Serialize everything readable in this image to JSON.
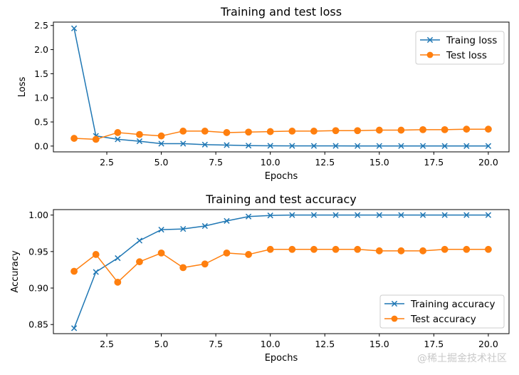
{
  "watermark": "@稀土掘金技术社区",
  "chart_data": [
    {
      "type": "line",
      "title": "Training and test loss",
      "xlabel": "Epochs",
      "ylabel": "Loss",
      "xlim": [
        0.05,
        20.95
      ],
      "ylim": [
        -0.12,
        2.57
      ],
      "xticks": [
        2.5,
        5.0,
        7.5,
        10.0,
        12.5,
        15.0,
        17.5,
        20.0
      ],
      "xtick_labels": [
        "2.5",
        "5.0",
        "7.5",
        "10.0",
        "12.5",
        "15.0",
        "17.5",
        "20.0"
      ],
      "yticks": [
        0.0,
        0.5,
        1.0,
        1.5,
        2.0,
        2.5
      ],
      "ytick_labels": [
        "0.0",
        "0.5",
        "1.0",
        "1.5",
        "2.0",
        "2.5"
      ],
      "legend_position": "upper right",
      "x": [
        1,
        2,
        3,
        4,
        5,
        6,
        7,
        8,
        9,
        10,
        11,
        12,
        13,
        14,
        15,
        16,
        17,
        18,
        19,
        20
      ],
      "series": [
        {
          "name": "Traing loss",
          "color": "#1f77b4",
          "marker": "x",
          "values": [
            2.44,
            0.21,
            0.14,
            0.1,
            0.05,
            0.05,
            0.03,
            0.02,
            0.01,
            0.005,
            0.004,
            0.003,
            0.003,
            0.002,
            0.002,
            0.002,
            0.002,
            0.001,
            0.001,
            0.001
          ]
        },
        {
          "name": "Test loss",
          "color": "#ff7f0e",
          "marker": "o",
          "values": [
            0.16,
            0.14,
            0.28,
            0.24,
            0.21,
            0.31,
            0.31,
            0.28,
            0.29,
            0.3,
            0.31,
            0.31,
            0.32,
            0.32,
            0.33,
            0.33,
            0.34,
            0.34,
            0.35,
            0.35
          ]
        }
      ]
    },
    {
      "type": "line",
      "title": "Training and test accuracy",
      "xlabel": "Epochs",
      "ylabel": "Accuracy",
      "xlim": [
        0.05,
        20.95
      ],
      "ylim": [
        0.8375,
        1.0075
      ],
      "xticks": [
        2.5,
        5.0,
        7.5,
        10.0,
        12.5,
        15.0,
        17.5,
        20.0
      ],
      "xtick_labels": [
        "2.5",
        "5.0",
        "7.5",
        "10.0",
        "12.5",
        "15.0",
        "17.5",
        "20.0"
      ],
      "yticks": [
        0.85,
        0.9,
        0.95,
        1.0
      ],
      "ytick_labels": [
        "0.85",
        "0.90",
        "0.95",
        "1.00"
      ],
      "legend_position": "lower right",
      "x": [
        1,
        2,
        3,
        4,
        5,
        6,
        7,
        8,
        9,
        10,
        11,
        12,
        13,
        14,
        15,
        16,
        17,
        18,
        19,
        20
      ],
      "series": [
        {
          "name": "Training accuracy",
          "color": "#1f77b4",
          "marker": "x",
          "values": [
            0.845,
            0.922,
            0.941,
            0.965,
            0.98,
            0.981,
            0.985,
            0.992,
            0.998,
            0.9995,
            1.0,
            1.0,
            1.0,
            1.0,
            1.0,
            1.0,
            1.0,
            1.0,
            1.0,
            1.0
          ]
        },
        {
          "name": "Test accuracy",
          "color": "#ff7f0e",
          "marker": "o",
          "values": [
            0.923,
            0.946,
            0.908,
            0.936,
            0.948,
            0.928,
            0.933,
            0.948,
            0.946,
            0.953,
            0.953,
            0.953,
            0.953,
            0.953,
            0.951,
            0.951,
            0.951,
            0.953,
            0.953,
            0.953
          ]
        }
      ]
    }
  ]
}
